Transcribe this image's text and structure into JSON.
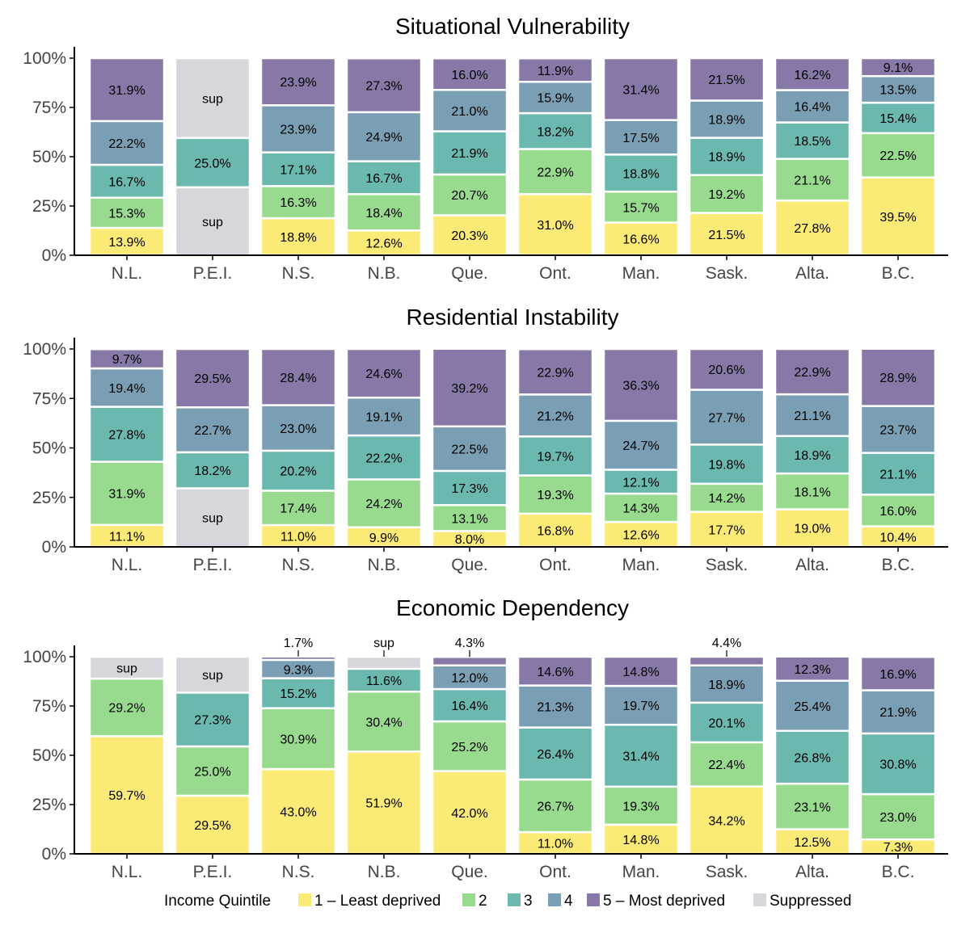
{
  "colors": {
    "q1": "#FBEA76",
    "q2": "#98DB8E",
    "q3": "#6BB8AE",
    "q4": "#7A9EB3",
    "q5": "#8878A8",
    "sup": "#D6D6DC",
    "axis": "#000000",
    "tick_text": "#444444"
  },
  "legend": {
    "title": "Income Quintile",
    "items": [
      {
        "key": "q1",
        "label": "1 – Least deprived"
      },
      {
        "key": "q2",
        "label": "2"
      },
      {
        "key": "q3",
        "label": "3"
      },
      {
        "key": "q4",
        "label": "4"
      },
      {
        "key": "q5",
        "label": "5 – Most deprived"
      },
      {
        "key": "sup",
        "label": "Suppressed"
      }
    ]
  },
  "chart_data": [
    {
      "type": "bar",
      "stacked": true,
      "title": "Situational Vulnerability",
      "categories": [
        "N.L.",
        "P.E.I.",
        "N.S.",
        "N.B.",
        "Que.",
        "Ont.",
        "Man.",
        "Sask.",
        "Alta.",
        "B.C."
      ],
      "ylim": [
        0,
        100
      ],
      "yticks": [
        0,
        25,
        50,
        75,
        100
      ],
      "ytick_labels": [
        "0%",
        "25%",
        "50%",
        "75%",
        "100%"
      ],
      "bars": [
        [
          {
            "q": "q1",
            "v": 13.9,
            "label": "13.9%"
          },
          {
            "q": "q2",
            "v": 15.3,
            "label": "15.3%"
          },
          {
            "q": "q3",
            "v": 16.7,
            "label": "16.7%"
          },
          {
            "q": "q4",
            "v": 22.2,
            "label": "22.2%"
          },
          {
            "q": "q5",
            "v": 31.9,
            "label": "31.9%"
          }
        ],
        [
          {
            "q": "sup",
            "v": 34.5,
            "label": "sup"
          },
          {
            "q": "q3",
            "v": 25.0,
            "label": "25.0%"
          },
          {
            "q": "sup",
            "v": 40.5,
            "label": "sup"
          }
        ],
        [
          {
            "q": "q1",
            "v": 18.8,
            "label": "18.8%"
          },
          {
            "q": "q2",
            "v": 16.3,
            "label": "16.3%"
          },
          {
            "q": "q3",
            "v": 17.1,
            "label": "17.1%"
          },
          {
            "q": "q4",
            "v": 23.9,
            "label": "23.9%"
          },
          {
            "q": "q5",
            "v": 23.9,
            "label": "23.9%"
          }
        ],
        [
          {
            "q": "q1",
            "v": 12.6,
            "label": "12.6%"
          },
          {
            "q": "q2",
            "v": 18.4,
            "label": "18.4%"
          },
          {
            "q": "q3",
            "v": 16.7,
            "label": "16.7%"
          },
          {
            "q": "q4",
            "v": 24.9,
            "label": "24.9%"
          },
          {
            "q": "q5",
            "v": 27.3,
            "label": "27.3%"
          }
        ],
        [
          {
            "q": "q1",
            "v": 20.3,
            "label": "20.3%"
          },
          {
            "q": "q2",
            "v": 20.7,
            "label": "20.7%"
          },
          {
            "q": "q3",
            "v": 21.9,
            "label": "21.9%"
          },
          {
            "q": "q4",
            "v": 21.0,
            "label": "21.0%"
          },
          {
            "q": "q5",
            "v": 16.0,
            "label": "16.0%"
          }
        ],
        [
          {
            "q": "q1",
            "v": 31.0,
            "label": "31.0%"
          },
          {
            "q": "q2",
            "v": 22.9,
            "label": "22.9%"
          },
          {
            "q": "q3",
            "v": 18.2,
            "label": "18.2%"
          },
          {
            "q": "q4",
            "v": 15.9,
            "label": "15.9%"
          },
          {
            "q": "q5",
            "v": 11.9,
            "label": "11.9%"
          }
        ],
        [
          {
            "q": "q1",
            "v": 16.6,
            "label": "16.6%"
          },
          {
            "q": "q2",
            "v": 15.7,
            "label": "15.7%"
          },
          {
            "q": "q3",
            "v": 18.8,
            "label": "18.8%"
          },
          {
            "q": "q4",
            "v": 17.5,
            "label": "17.5%"
          },
          {
            "q": "q5",
            "v": 31.4,
            "label": "31.4%"
          }
        ],
        [
          {
            "q": "q1",
            "v": 21.5,
            "label": "21.5%"
          },
          {
            "q": "q2",
            "v": 19.2,
            "label": "19.2%"
          },
          {
            "q": "q3",
            "v": 18.9,
            "label": "18.9%"
          },
          {
            "q": "q4",
            "v": 18.9,
            "label": "18.9%"
          },
          {
            "q": "q5",
            "v": 21.5,
            "label": "21.5%"
          }
        ],
        [
          {
            "q": "q1",
            "v": 27.8,
            "label": "27.8%"
          },
          {
            "q": "q2",
            "v": 21.1,
            "label": "21.1%"
          },
          {
            "q": "q3",
            "v": 18.5,
            "label": "18.5%"
          },
          {
            "q": "q4",
            "v": 16.4,
            "label": "16.4%"
          },
          {
            "q": "q5",
            "v": 16.2,
            "label": "16.2%"
          }
        ],
        [
          {
            "q": "q1",
            "v": 39.5,
            "label": "39.5%"
          },
          {
            "q": "q2",
            "v": 22.5,
            "label": "22.5%"
          },
          {
            "q": "q3",
            "v": 15.4,
            "label": "15.4%"
          },
          {
            "q": "q4",
            "v": 13.5,
            "label": "13.5%"
          },
          {
            "q": "q5",
            "v": 9.1,
            "label": "9.1%"
          }
        ]
      ]
    },
    {
      "type": "bar",
      "stacked": true,
      "title": "Residential Instability",
      "categories": [
        "N.L.",
        "P.E.I.",
        "N.S.",
        "N.B.",
        "Que.",
        "Ont.",
        "Man.",
        "Sask.",
        "Alta.",
        "B.C."
      ],
      "ylim": [
        0,
        100
      ],
      "yticks": [
        0,
        25,
        50,
        75,
        100
      ],
      "ytick_labels": [
        "0%",
        "25%",
        "50%",
        "75%",
        "100%"
      ],
      "bars": [
        [
          {
            "q": "q1",
            "v": 11.1,
            "label": "11.1%"
          },
          {
            "q": "q2",
            "v": 31.9,
            "label": "31.9%"
          },
          {
            "q": "q3",
            "v": 27.8,
            "label": "27.8%"
          },
          {
            "q": "q4",
            "v": 19.4,
            "label": "19.4%"
          },
          {
            "q": "q5",
            "v": 9.7,
            "label": "9.7%"
          }
        ],
        [
          {
            "q": "sup",
            "v": 29.6,
            "label": "sup"
          },
          {
            "q": "q3",
            "v": 18.2,
            "label": "18.2%"
          },
          {
            "q": "q4",
            "v": 22.7,
            "label": "22.7%"
          },
          {
            "q": "q5",
            "v": 29.5,
            "label": "29.5%"
          }
        ],
        [
          {
            "q": "q1",
            "v": 11.0,
            "label": "11.0%"
          },
          {
            "q": "q2",
            "v": 17.4,
            "label": "17.4%"
          },
          {
            "q": "q3",
            "v": 20.2,
            "label": "20.2%"
          },
          {
            "q": "q4",
            "v": 23.0,
            "label": "23.0%"
          },
          {
            "q": "q5",
            "v": 28.4,
            "label": "28.4%"
          }
        ],
        [
          {
            "q": "q1",
            "v": 9.9,
            "label": "9.9%"
          },
          {
            "q": "q2",
            "v": 24.2,
            "label": "24.2%"
          },
          {
            "q": "q3",
            "v": 22.2,
            "label": "22.2%"
          },
          {
            "q": "q4",
            "v": 19.1,
            "label": "19.1%"
          },
          {
            "q": "q5",
            "v": 24.6,
            "label": "24.6%"
          }
        ],
        [
          {
            "q": "q1",
            "v": 8.0,
            "label": "8.0%"
          },
          {
            "q": "q2",
            "v": 13.1,
            "label": "13.1%"
          },
          {
            "q": "q3",
            "v": 17.3,
            "label": "17.3%"
          },
          {
            "q": "q4",
            "v": 22.5,
            "label": "22.5%"
          },
          {
            "q": "q5",
            "v": 39.2,
            "label": "39.2%"
          }
        ],
        [
          {
            "q": "q1",
            "v": 16.8,
            "label": "16.8%"
          },
          {
            "q": "q2",
            "v": 19.3,
            "label": "19.3%"
          },
          {
            "q": "q3",
            "v": 19.7,
            "label": "19.7%"
          },
          {
            "q": "q4",
            "v": 21.2,
            "label": "21.2%"
          },
          {
            "q": "q5",
            "v": 22.9,
            "label": "22.9%"
          }
        ],
        [
          {
            "q": "q1",
            "v": 12.6,
            "label": "12.6%"
          },
          {
            "q": "q2",
            "v": 14.3,
            "label": "14.3%"
          },
          {
            "q": "q3",
            "v": 12.1,
            "label": "12.1%"
          },
          {
            "q": "q4",
            "v": 24.7,
            "label": "24.7%"
          },
          {
            "q": "q5",
            "v": 36.3,
            "label": "36.3%"
          }
        ],
        [
          {
            "q": "q1",
            "v": 17.7,
            "label": "17.7%"
          },
          {
            "q": "q2",
            "v": 14.2,
            "label": "14.2%"
          },
          {
            "q": "q3",
            "v": 19.8,
            "label": "19.8%"
          },
          {
            "q": "q4",
            "v": 27.7,
            "label": "27.7%"
          },
          {
            "q": "q5",
            "v": 20.6,
            "label": "20.6%"
          }
        ],
        [
          {
            "q": "q1",
            "v": 19.0,
            "label": "19.0%"
          },
          {
            "q": "q2",
            "v": 18.1,
            "label": "18.1%"
          },
          {
            "q": "q3",
            "v": 18.9,
            "label": "18.9%"
          },
          {
            "q": "q4",
            "v": 21.1,
            "label": "21.1%"
          },
          {
            "q": "q5",
            "v": 22.9,
            "label": "22.9%"
          }
        ],
        [
          {
            "q": "q1",
            "v": 10.4,
            "label": "10.4%"
          },
          {
            "q": "q2",
            "v": 16.0,
            "label": "16.0%"
          },
          {
            "q": "q3",
            "v": 21.1,
            "label": "21.1%"
          },
          {
            "q": "q4",
            "v": 23.7,
            "label": "23.7%"
          },
          {
            "q": "q5",
            "v": 28.9,
            "label": "28.9%"
          }
        ]
      ]
    },
    {
      "type": "bar",
      "stacked": true,
      "title": "Economic Dependency",
      "categories": [
        "N.L.",
        "P.E.I.",
        "N.S.",
        "N.B.",
        "Que.",
        "Ont.",
        "Man.",
        "Sask.",
        "Alta.",
        "B.C."
      ],
      "ylim": [
        0,
        100
      ],
      "yticks": [
        0,
        25,
        50,
        75,
        100
      ],
      "ytick_labels": [
        "0%",
        "25%",
        "50%",
        "75%",
        "100%"
      ],
      "bars": [
        [
          {
            "q": "q1",
            "v": 59.7,
            "label": "59.7%"
          },
          {
            "q": "q2",
            "v": 29.2,
            "label": "29.2%"
          },
          {
            "q": "sup",
            "v": 11.1,
            "label": "sup"
          }
        ],
        [
          {
            "q": "q1",
            "v": 29.5,
            "label": "29.5%"
          },
          {
            "q": "q2",
            "v": 25.0,
            "label": "25.0%"
          },
          {
            "q": "q3",
            "v": 27.3,
            "label": "27.3%"
          },
          {
            "q": "sup",
            "v": 18.2,
            "label": "sup"
          }
        ],
        [
          {
            "q": "q1",
            "v": 43.0,
            "label": "43.0%"
          },
          {
            "q": "q2",
            "v": 30.9,
            "label": "30.9%"
          },
          {
            "q": "q3",
            "v": 15.2,
            "label": "15.2%"
          },
          {
            "q": "q4",
            "v": 9.3,
            "label": "9.3%"
          },
          {
            "q": "q5",
            "v": 1.7,
            "label": "1.7%",
            "outside": true
          }
        ],
        [
          {
            "q": "q1",
            "v": 51.9,
            "label": "51.9%"
          },
          {
            "q": "q2",
            "v": 30.4,
            "label": "30.4%"
          },
          {
            "q": "q3",
            "v": 11.6,
            "label": "11.6%"
          },
          {
            "q": "sup",
            "v": 6.1,
            "label": "sup",
            "outside": true
          }
        ],
        [
          {
            "q": "q1",
            "v": 42.0,
            "label": "42.0%"
          },
          {
            "q": "q2",
            "v": 25.2,
            "label": "25.2%"
          },
          {
            "q": "q3",
            "v": 16.4,
            "label": "16.4%"
          },
          {
            "q": "q4",
            "v": 12.0,
            "label": "12.0%"
          },
          {
            "q": "q5",
            "v": 4.3,
            "label": "4.3%",
            "outside": true
          }
        ],
        [
          {
            "q": "q1",
            "v": 11.0,
            "label": "11.0%"
          },
          {
            "q": "q2",
            "v": 26.7,
            "label": "26.7%"
          },
          {
            "q": "q3",
            "v": 26.4,
            "label": "26.4%"
          },
          {
            "q": "q4",
            "v": 21.3,
            "label": "21.3%"
          },
          {
            "q": "q5",
            "v": 14.6,
            "label": "14.6%"
          }
        ],
        [
          {
            "q": "q1",
            "v": 14.8,
            "label": "14.8%"
          },
          {
            "q": "q2",
            "v": 19.3,
            "label": "19.3%"
          },
          {
            "q": "q3",
            "v": 31.4,
            "label": "31.4%"
          },
          {
            "q": "q4",
            "v": 19.7,
            "label": "19.7%"
          },
          {
            "q": "q5",
            "v": 14.8,
            "label": "14.8%"
          }
        ],
        [
          {
            "q": "q1",
            "v": 34.2,
            "label": "34.2%"
          },
          {
            "q": "q2",
            "v": 22.4,
            "label": "22.4%"
          },
          {
            "q": "q3",
            "v": 20.1,
            "label": "20.1%"
          },
          {
            "q": "q4",
            "v": 18.9,
            "label": "18.9%"
          },
          {
            "q": "q5",
            "v": 4.4,
            "label": "4.4%",
            "outside": true
          }
        ],
        [
          {
            "q": "q1",
            "v": 12.5,
            "label": "12.5%"
          },
          {
            "q": "q2",
            "v": 23.1,
            "label": "23.1%"
          },
          {
            "q": "q3",
            "v": 26.8,
            "label": "26.8%"
          },
          {
            "q": "q4",
            "v": 25.4,
            "label": "25.4%"
          },
          {
            "q": "q5",
            "v": 12.3,
            "label": "12.3%"
          }
        ],
        [
          {
            "q": "q1",
            "v": 7.3,
            "label": "7.3%"
          },
          {
            "q": "q2",
            "v": 23.0,
            "label": "23.0%"
          },
          {
            "q": "q3",
            "v": 30.8,
            "label": "30.8%"
          },
          {
            "q": "q4",
            "v": 21.9,
            "label": "21.9%"
          },
          {
            "q": "q5",
            "v": 16.9,
            "label": "16.9%"
          }
        ]
      ]
    }
  ]
}
